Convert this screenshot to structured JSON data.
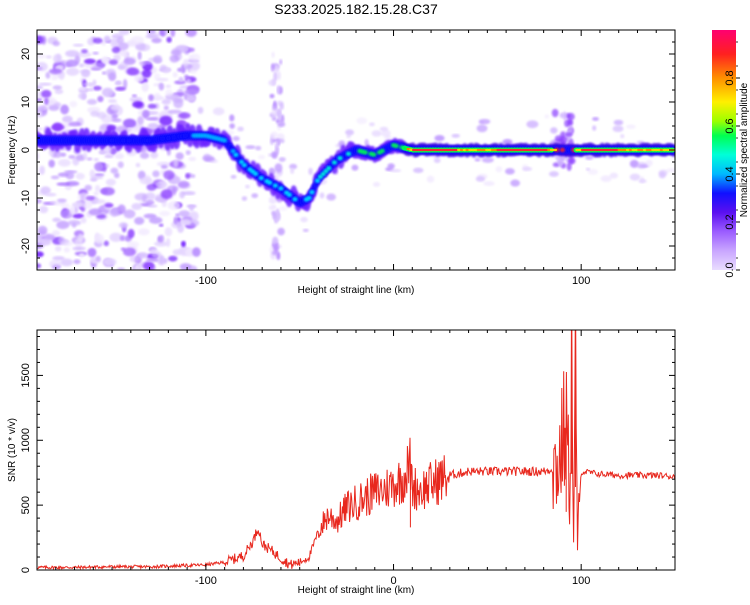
{
  "chart_data": [
    {
      "type": "heatmap",
      "title": "S233.2025.182.15.28.C37",
      "xlabel": "Height of straight line (km)",
      "ylabel": "Frequency (Hz)",
      "xlim": [
        -190,
        150
      ],
      "ylim": [
        -25,
        25
      ],
      "xticks": [
        -100,
        100
      ],
      "xticks_minor_step": 10,
      "yticks": [
        20,
        10,
        0,
        -10,
        -20
      ],
      "colorbar": {
        "label": "Normalized spectral amplitude",
        "range": [
          0,
          1
        ],
        "ticks": [
          "0.0",
          "0.2",
          "0.4",
          "0.6",
          "0.8"
        ]
      },
      "ridge": {
        "x": [
          -190,
          -170,
          -150,
          -130,
          -110,
          -100,
          -90,
          -80,
          -70,
          -60,
          -50,
          -45,
          -40,
          -30,
          -20,
          -10,
          0,
          10,
          30,
          50,
          70,
          85,
          90,
          95,
          100,
          120,
          150
        ],
        "y": [
          2,
          2,
          2,
          2,
          3,
          3,
          2,
          -3,
          -6,
          -8,
          -11,
          -10,
          -6,
          -2,
          0,
          -1,
          1,
          0,
          0,
          0,
          0,
          0,
          0,
          0,
          0,
          0,
          0
        ]
      }
    },
    {
      "type": "line",
      "title": "",
      "xlabel": "Height of straight line (km)",
      "ylabel": "SNR (10 * v/v)",
      "xlim": [
        -190,
        150
      ],
      "ylim": [
        0,
        1850
      ],
      "xticks": [
        -100,
        0,
        100
      ],
      "yticks": [
        0,
        500,
        1000,
        1500
      ],
      "color": "#e8281e",
      "series": [
        {
          "x": [
            -190,
            -170,
            -150,
            -130,
            -110,
            -100,
            -90,
            -80,
            -75,
            -72,
            -70,
            -65,
            -60,
            -55,
            -50,
            -45,
            -40,
            -35,
            -30,
            -25,
            -20,
            -15,
            -10,
            -5,
            0,
            5,
            9,
            10,
            15,
            20,
            25,
            30,
            40,
            50,
            60,
            70,
            80,
            85,
            88,
            90,
            92,
            94,
            95,
            96,
            97,
            98,
            100,
            110,
            120,
            130,
            140,
            150
          ],
          "y": [
            20,
            20,
            25,
            25,
            35,
            40,
            60,
            110,
            220,
            330,
            200,
            150,
            90,
            40,
            60,
            100,
            300,
            420,
            380,
            480,
            520,
            560,
            600,
            620,
            660,
            700,
            820,
            640,
            620,
            660,
            700,
            730,
            760,
            760,
            760,
            760,
            760,
            780,
            820,
            1000,
            1120,
            600,
            1850,
            100,
            1600,
            200,
            760,
            740,
            730,
            730,
            730,
            720
          ]
        }
      ]
    }
  ]
}
